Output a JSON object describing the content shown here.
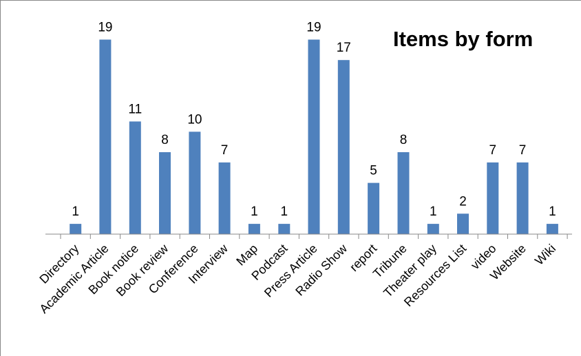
{
  "chart_data": {
    "type": "bar",
    "title": "Items by form",
    "categories": [
      "Directory",
      "Academic Article",
      "Book notice",
      "Book review",
      "Conference",
      "Interview",
      "Map",
      "Podcast",
      "Press Article",
      "Radio Show",
      "report",
      "Tribune",
      "Theater play",
      "Resources List",
      "video",
      "Website",
      "Wiki"
    ],
    "values": [
      1,
      19,
      11,
      8,
      10,
      7,
      1,
      1,
      19,
      17,
      5,
      8,
      1,
      2,
      7,
      7,
      1
    ],
    "data_labels": true,
    "xlabel": "",
    "ylabel": "",
    "ylim": [
      0,
      20
    ],
    "grid": false,
    "legend": "none",
    "colors": {
      "bar": "#4F81BD",
      "axis": "#888888",
      "text": "#000000"
    }
  }
}
